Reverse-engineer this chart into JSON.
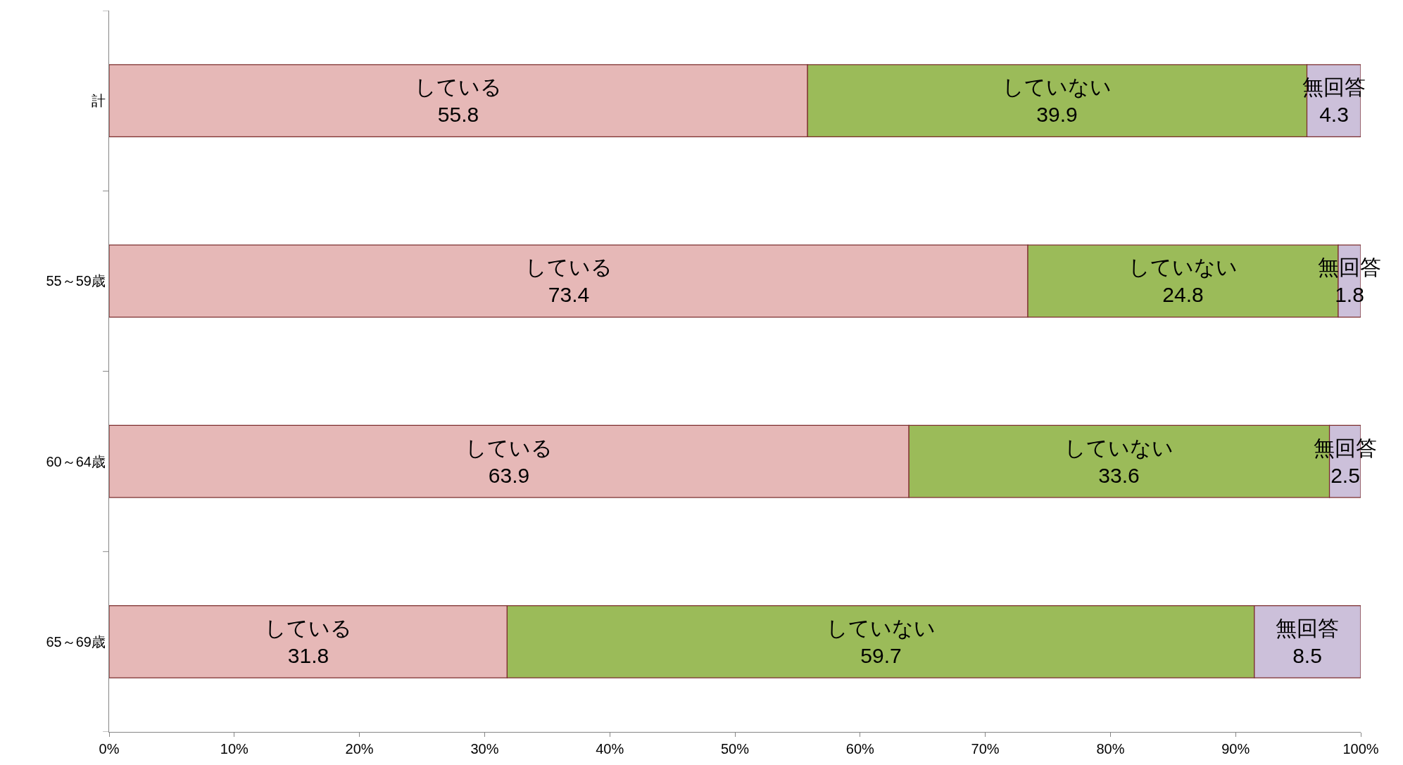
{
  "chart_data": {
    "type": "bar",
    "orientation": "horizontal",
    "stacked": true,
    "data_labels": true,
    "legend": false,
    "categories": [
      "計",
      "55～59歳",
      "60～64歳",
      "65～69歳"
    ],
    "series": [
      {
        "name": "している",
        "color": "#e6b8b7",
        "values": [
          55.8,
          73.4,
          63.9,
          31.8
        ]
      },
      {
        "name": "していない",
        "color": "#9bbb59",
        "values": [
          39.9,
          24.8,
          33.6,
          59.7
        ]
      },
      {
        "name": "無回答",
        "color": "#ccc0da",
        "values": [
          4.3,
          1.8,
          2.5,
          8.5
        ]
      }
    ],
    "xlim": [
      0,
      100
    ],
    "xticks": [
      {
        "value": 0,
        "label": "0%"
      },
      {
        "value": 10,
        "label": "10%"
      },
      {
        "value": 20,
        "label": "20%"
      },
      {
        "value": 30,
        "label": "30%"
      },
      {
        "value": 40,
        "label": "40%"
      },
      {
        "value": 50,
        "label": "50%"
      },
      {
        "value": 60,
        "label": "60%"
      },
      {
        "value": 70,
        "label": "70%"
      },
      {
        "value": 80,
        "label": "80%"
      },
      {
        "value": 90,
        "label": "90%"
      },
      {
        "value": 100,
        "label": "100%"
      }
    ]
  }
}
